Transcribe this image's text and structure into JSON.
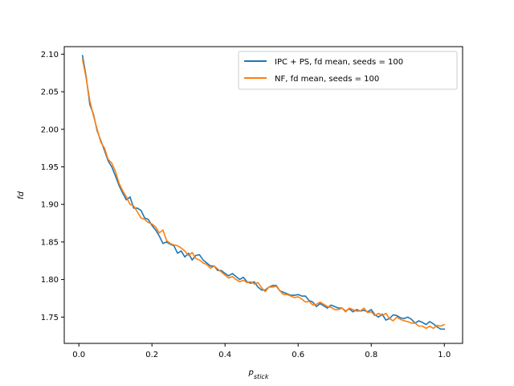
{
  "chart_data": {
    "type": "line",
    "title": "",
    "xlabel_main": "p",
    "xlabel_sub": "stick",
    "ylabel": "fd",
    "xlim": [
      -0.04,
      1.05
    ],
    "ylim": [
      1.715,
      2.11
    ],
    "xticks": [
      0.0,
      0.2,
      0.4,
      0.6,
      0.8,
      1.0
    ],
    "xtick_labels": [
      "0.0",
      "0.2",
      "0.4",
      "0.6",
      "0.8",
      "1.0"
    ],
    "yticks": [
      1.75,
      1.8,
      1.85,
      1.9,
      1.95,
      2.0,
      2.05,
      2.1
    ],
    "ytick_labels": [
      "1.75",
      "1.80",
      "1.85",
      "1.90",
      "1.95",
      "2.00",
      "2.05",
      "2.10"
    ],
    "grid": false,
    "legend_position": "top-right",
    "series": [
      {
        "name": "IPC + PS, fd mean, seeds = 100",
        "color": "#1f77b4",
        "x": [
          0.01,
          0.02,
          0.03,
          0.04,
          0.05,
          0.06,
          0.07,
          0.08,
          0.09,
          0.1,
          0.11,
          0.12,
          0.13,
          0.14,
          0.15,
          0.16,
          0.17,
          0.18,
          0.19,
          0.2,
          0.21,
          0.22,
          0.23,
          0.24,
          0.25,
          0.26,
          0.27,
          0.28,
          0.29,
          0.3,
          0.31,
          0.32,
          0.33,
          0.34,
          0.35,
          0.36,
          0.37,
          0.38,
          0.39,
          0.4,
          0.41,
          0.42,
          0.43,
          0.44,
          0.45,
          0.46,
          0.47,
          0.48,
          0.49,
          0.5,
          0.51,
          0.52,
          0.53,
          0.54,
          0.55,
          0.56,
          0.57,
          0.58,
          0.59,
          0.6,
          0.61,
          0.62,
          0.63,
          0.64,
          0.65,
          0.66,
          0.67,
          0.68,
          0.69,
          0.7,
          0.71,
          0.72,
          0.73,
          0.74,
          0.75,
          0.76,
          0.77,
          0.78,
          0.79,
          0.8,
          0.81,
          0.82,
          0.83,
          0.84,
          0.85,
          0.86,
          0.87,
          0.88,
          0.89,
          0.9,
          0.91,
          0.92,
          0.93,
          0.94,
          0.95,
          0.96,
          0.97,
          0.98,
          0.99,
          1.0
        ],
        "values": [
          2.098,
          2.07,
          2.033,
          2.02,
          1.998,
          1.985,
          1.972,
          1.958,
          1.95,
          1.938,
          1.925,
          1.915,
          1.906,
          1.91,
          1.895,
          1.895,
          1.892,
          1.882,
          1.88,
          1.872,
          1.866,
          1.858,
          1.848,
          1.85,
          1.847,
          1.845,
          1.835,
          1.838,
          1.83,
          1.835,
          1.826,
          1.832,
          1.833,
          1.826,
          1.822,
          1.818,
          1.818,
          1.812,
          1.812,
          1.808,
          1.805,
          1.808,
          1.804,
          1.8,
          1.803,
          1.797,
          1.795,
          1.797,
          1.79,
          1.786,
          1.786,
          1.79,
          1.792,
          1.792,
          1.785,
          1.783,
          1.781,
          1.779,
          1.779,
          1.78,
          1.778,
          1.778,
          1.772,
          1.77,
          1.764,
          1.768,
          1.765,
          1.762,
          1.766,
          1.764,
          1.762,
          1.762,
          1.758,
          1.761,
          1.757,
          1.76,
          1.758,
          1.759,
          1.757,
          1.76,
          1.753,
          1.75,
          1.754,
          1.746,
          1.748,
          1.753,
          1.752,
          1.749,
          1.748,
          1.75,
          1.747,
          1.742,
          1.745,
          1.743,
          1.74,
          1.744,
          1.741,
          1.737,
          1.734,
          1.734
        ]
      },
      {
        "name": "NF, fd mean, seeds = 100",
        "color": "#ff7f0e",
        "x": [
          0.01,
          0.02,
          0.03,
          0.04,
          0.05,
          0.06,
          0.07,
          0.08,
          0.09,
          0.1,
          0.11,
          0.12,
          0.13,
          0.14,
          0.15,
          0.16,
          0.17,
          0.18,
          0.19,
          0.2,
          0.21,
          0.22,
          0.23,
          0.24,
          0.25,
          0.26,
          0.27,
          0.28,
          0.29,
          0.3,
          0.31,
          0.32,
          0.33,
          0.34,
          0.35,
          0.36,
          0.37,
          0.38,
          0.39,
          0.4,
          0.41,
          0.42,
          0.43,
          0.44,
          0.45,
          0.46,
          0.47,
          0.48,
          0.49,
          0.5,
          0.51,
          0.52,
          0.53,
          0.54,
          0.55,
          0.56,
          0.57,
          0.58,
          0.59,
          0.6,
          0.61,
          0.62,
          0.63,
          0.64,
          0.65,
          0.66,
          0.67,
          0.68,
          0.69,
          0.7,
          0.71,
          0.72,
          0.73,
          0.74,
          0.75,
          0.76,
          0.77,
          0.78,
          0.79,
          0.8,
          0.81,
          0.82,
          0.83,
          0.84,
          0.85,
          0.86,
          0.87,
          0.88,
          0.89,
          0.9,
          0.91,
          0.92,
          0.93,
          0.94,
          0.95,
          0.96,
          0.97,
          0.98,
          0.99,
          1.0
        ],
        "values": [
          2.093,
          2.068,
          2.038,
          2.018,
          2.0,
          1.983,
          1.975,
          1.96,
          1.955,
          1.944,
          1.928,
          1.918,
          1.91,
          1.9,
          1.898,
          1.89,
          1.882,
          1.88,
          1.876,
          1.874,
          1.87,
          1.862,
          1.866,
          1.852,
          1.848,
          1.846,
          1.845,
          1.842,
          1.838,
          1.832,
          1.836,
          1.828,
          1.826,
          1.822,
          1.82,
          1.815,
          1.818,
          1.814,
          1.81,
          1.806,
          1.802,
          1.804,
          1.8,
          1.797,
          1.799,
          1.796,
          1.797,
          1.794,
          1.796,
          1.789,
          1.784,
          1.79,
          1.79,
          1.791,
          1.785,
          1.78,
          1.78,
          1.778,
          1.776,
          1.777,
          1.774,
          1.77,
          1.771,
          1.766,
          1.767,
          1.77,
          1.767,
          1.764,
          1.763,
          1.76,
          1.76,
          1.762,
          1.757,
          1.762,
          1.76,
          1.758,
          1.758,
          1.762,
          1.756,
          1.757,
          1.752,
          1.755,
          1.752,
          1.755,
          1.748,
          1.745,
          1.75,
          1.747,
          1.745,
          1.744,
          1.742,
          1.742,
          1.738,
          1.738,
          1.735,
          1.738,
          1.735,
          1.739,
          1.738,
          1.74
        ]
      }
    ]
  }
}
